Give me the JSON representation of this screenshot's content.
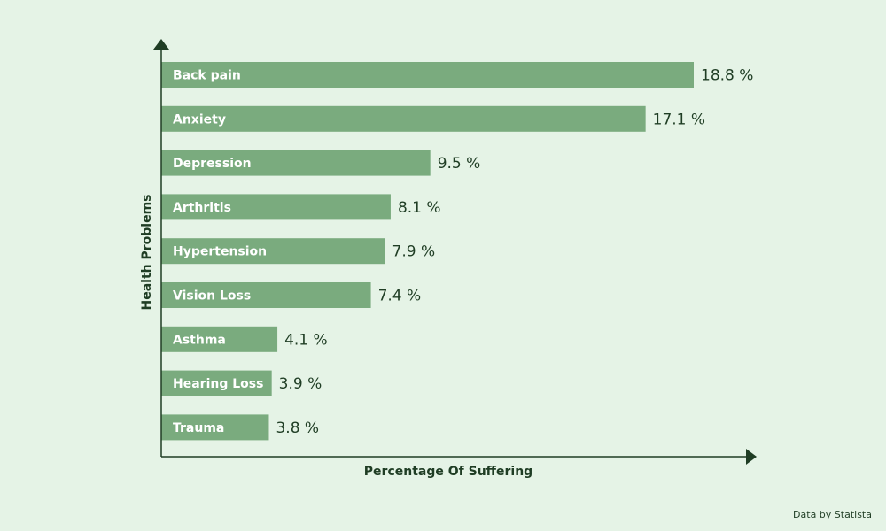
{
  "chart_data": {
    "type": "bar",
    "orientation": "horizontal",
    "categories": [
      "Back pain",
      "Anxiety",
      "Depression",
      "Arthritis",
      "Hypertension",
      "Vision Loss",
      "Asthma",
      "Hearing Loss",
      "Trauma"
    ],
    "values": [
      18.8,
      17.1,
      9.5,
      8.1,
      7.9,
      7.4,
      4.1,
      3.9,
      3.8
    ],
    "value_labels": [
      "18.8 %",
      "17.1 %",
      "9.5 %",
      "8.1 %",
      "7.9 %",
      "7.4 %",
      "4.1 %",
      "3.9 %",
      "3.8 %"
    ],
    "xlabel": "Percentage Of Suffering",
    "ylabel": "Health Problems",
    "grid": false,
    "legend": "none"
  },
  "source": "Data by Statista",
  "colors": {
    "background": "#e5f3e6",
    "bar": "#7aab7e",
    "axis": "#1f3d24",
    "text": "#1f3d24"
  }
}
